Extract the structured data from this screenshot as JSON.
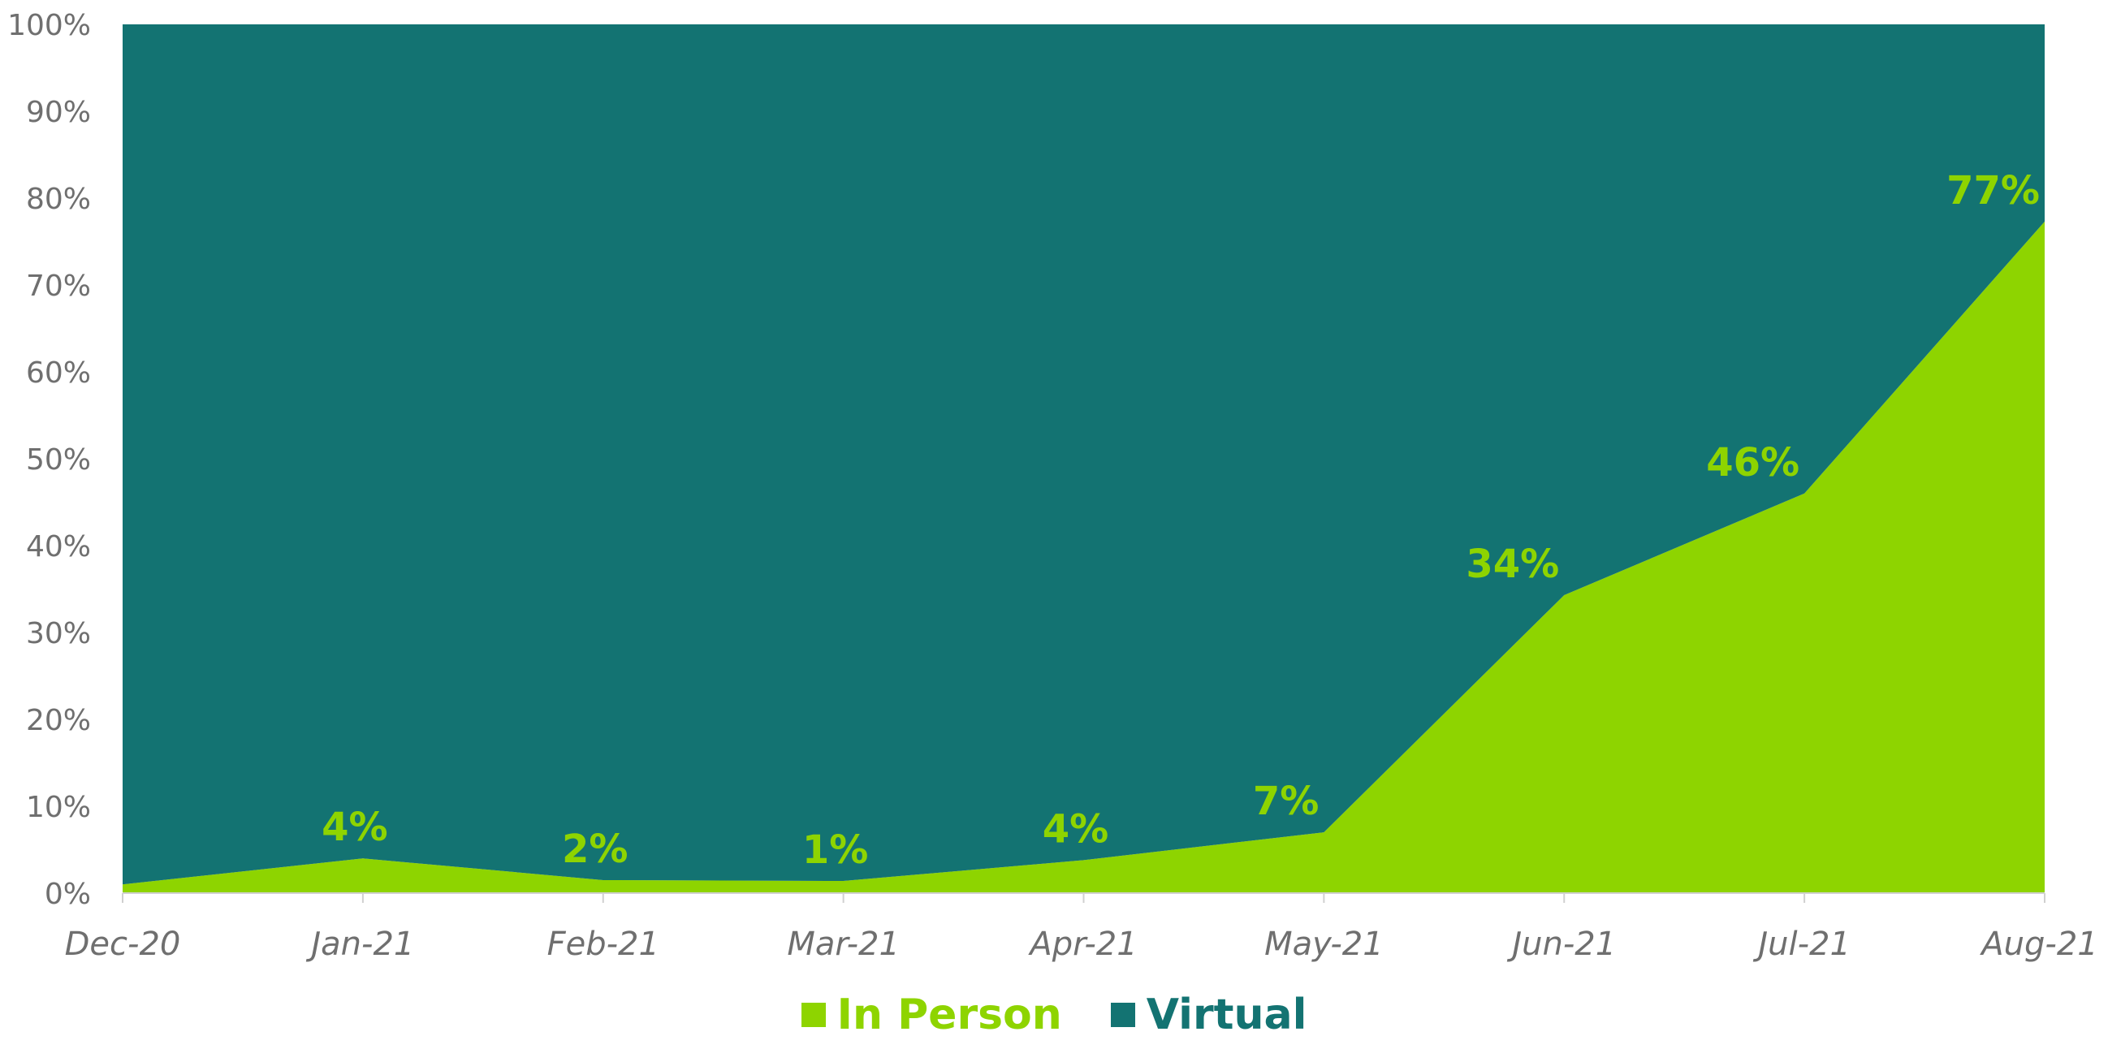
{
  "chart_data": {
    "type": "area",
    "stacked": true,
    "categories": [
      "Dec-20",
      "Jan-21",
      "Feb-21",
      "Mar-21",
      "Apr-21",
      "May-21",
      "Jun-21",
      "Jul-21",
      "Aug-21"
    ],
    "series": [
      {
        "name": "In Person",
        "color": "#8ed400",
        "values": [
          1,
          4,
          1.5,
          1.4,
          3.8,
          7,
          34.3,
          46,
          77.3
        ],
        "data_labels": [
          null,
          "4%",
          "2%",
          "1%",
          "4%",
          "7%",
          "34%",
          "46%",
          "77%"
        ]
      },
      {
        "name": "Virtual",
        "color": "#137372",
        "values": [
          99,
          96,
          98.5,
          98.6,
          96.2,
          93,
          65.7,
          54,
          22.7
        ],
        "data_labels": [
          null,
          null,
          null,
          null,
          null,
          null,
          null,
          null,
          null
        ]
      }
    ],
    "yticks": [
      "0%",
      "10%",
      "20%",
      "30%",
      "40%",
      "50%",
      "60%",
      "70%",
      "80%",
      "90%",
      "100%"
    ],
    "ylim": [
      0,
      100
    ],
    "grid": false,
    "legend_position": "bottom",
    "title": "",
    "xlabel": "",
    "ylabel": ""
  }
}
